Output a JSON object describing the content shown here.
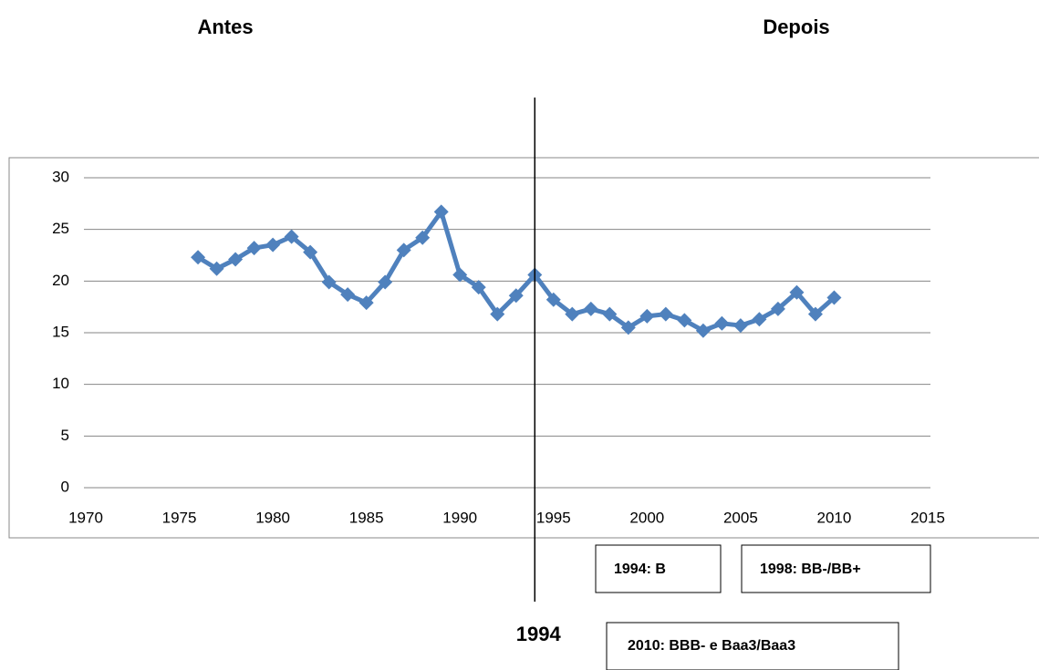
{
  "chart_data": {
    "type": "line",
    "heading_left": "Antes",
    "heading_right": "Depois",
    "x": [
      1976,
      1977,
      1978,
      1979,
      1980,
      1981,
      1982,
      1983,
      1984,
      1985,
      1986,
      1987,
      1988,
      1989,
      1990,
      1991,
      1992,
      1993,
      1994,
      1995,
      1996,
      1997,
      1998,
      1999,
      2000,
      2001,
      2002,
      2003,
      2004,
      2005,
      2006,
      2007,
      2008,
      2009,
      2010
    ],
    "values": [
      22.3,
      21.2,
      22.1,
      23.2,
      23.5,
      24.3,
      22.8,
      19.9,
      18.7,
      17.9,
      19.9,
      23.0,
      24.2,
      26.7,
      20.6,
      19.4,
      16.8,
      18.6,
      20.6,
      18.2,
      16.8,
      17.3,
      16.8,
      15.5,
      16.6,
      16.8,
      16.2,
      15.2,
      15.9,
      15.7,
      16.3,
      17.3,
      18.9,
      16.8,
      18.4
    ],
    "color": "#4f81bd",
    "xlim": [
      1970,
      2015
    ],
    "xticks": [
      1970,
      1975,
      1980,
      1985,
      1990,
      1995,
      2000,
      2005,
      2010,
      2015
    ],
    "ylim": [
      0,
      30
    ],
    "yticks": [
      0,
      5,
      10,
      15,
      20,
      25,
      30
    ],
    "grid": true,
    "vline": 1994,
    "annotations": [
      "1994: B",
      "1998: BB-/BB+",
      "2010: BBB- e Baa3/Baa3"
    ]
  }
}
